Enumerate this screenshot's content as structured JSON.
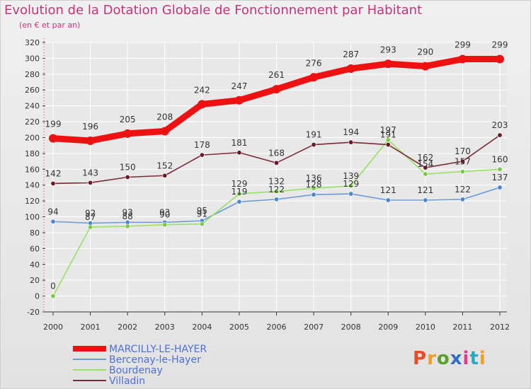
{
  "title": "Evolution de la Dotation Globale de Fonctionnement par Habitant",
  "subtitle": "(en € et par an)",
  "logo_text": "Proxiti",
  "colors": {
    "title": "#c8327a",
    "series": [
      "#ee1111",
      "#6b9bd6",
      "#99e066",
      "#7a2a38"
    ],
    "markers": [
      "#ee1111",
      "#4c84cf",
      "#77cc44",
      "#6a1a25"
    ],
    "legend_text": "#4f6fd8"
  },
  "chart_data": {
    "type": "line",
    "title": "Evolution de la Dotation Globale de Fonctionnement par Habitant",
    "subtitle": "(en € et par an)",
    "x": [
      "2000",
      "2001",
      "2002",
      "2003",
      "2004",
      "2005",
      "2006",
      "2007",
      "2008",
      "2009",
      "2010",
      "2011",
      "2012"
    ],
    "ylim": [
      -20,
      320
    ],
    "yticks": [
      -20,
      0,
      20,
      40,
      60,
      80,
      100,
      120,
      140,
      160,
      180,
      200,
      220,
      240,
      260,
      280,
      300,
      320
    ],
    "grid": true,
    "legend_position": "bottom",
    "series": [
      {
        "name": "MARCILLY-LE-HAYER",
        "values": [
          199,
          196,
          205,
          208,
          242,
          247,
          261,
          276,
          287,
          293,
          290,
          299,
          299
        ],
        "labels": [
          "199",
          "196",
          "205",
          "208",
          "242",
          "247",
          "261",
          "276",
          "287",
          "293",
          "290",
          "299",
          "299"
        ]
      },
      {
        "name": "Bercenay-le-Hayer",
        "values": [
          94,
          92,
          93,
          93,
          95,
          119,
          122,
          128,
          129,
          121,
          121,
          122,
          137
        ],
        "labels": [
          "94",
          "92",
          "93",
          "93",
          "95",
          "119",
          "122",
          "128",
          "129",
          "121",
          "121",
          "122",
          "137"
        ]
      },
      {
        "name": "Bourdenay",
        "values": [
          0,
          87,
          88,
          90,
          91,
          129,
          132,
          136,
          139,
          197,
          154,
          157,
          160
        ],
        "labels": [
          "0",
          "87",
          "88",
          "90",
          "91",
          "129",
          "132",
          "136",
          "139",
          "197",
          "154",
          "157",
          "160"
        ]
      },
      {
        "name": "Villadin",
        "values": [
          142,
          143,
          150,
          152,
          178,
          181,
          168,
          191,
          194,
          191,
          162,
          170,
          203
        ],
        "labels": [
          "142",
          "143",
          "150",
          "152",
          "178",
          "181",
          "168",
          "191",
          "194",
          "191",
          "162",
          "170",
          "203"
        ]
      }
    ]
  }
}
